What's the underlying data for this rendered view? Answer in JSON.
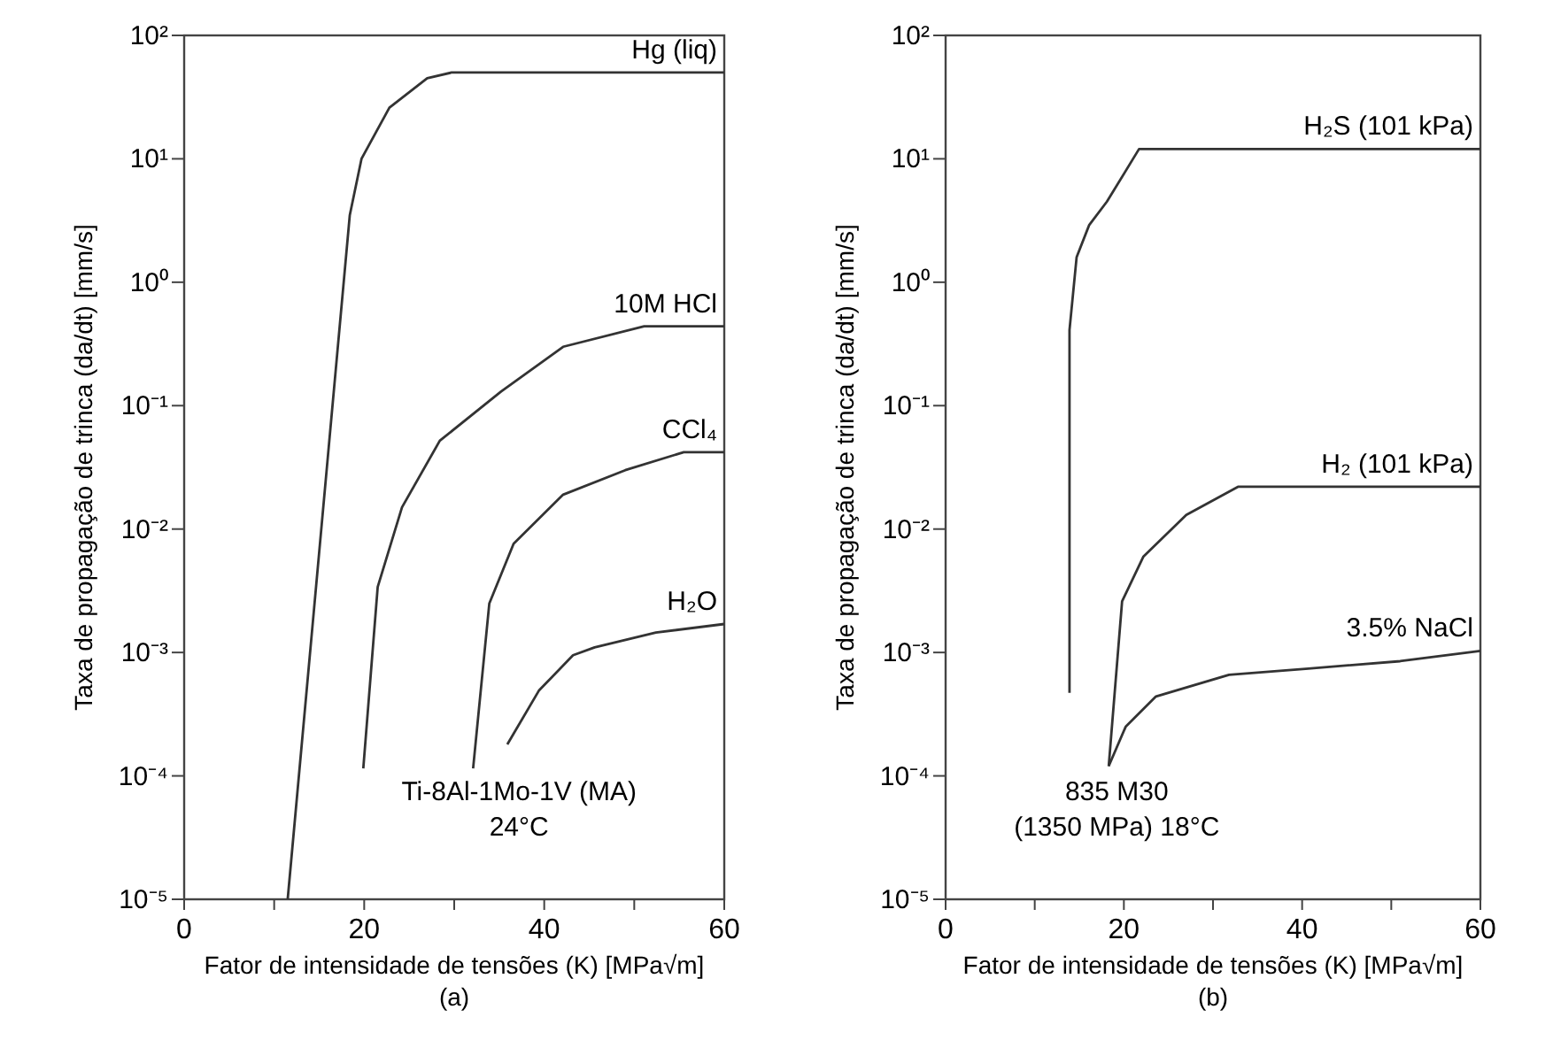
{
  "chart_data": [
    {
      "type": "line",
      "xlabel": "Fator de intensidade de tensões (K) [MPa√m]",
      "ylabel": "Taxa de propagação de trinca (da/dt) [mm/s]",
      "log": "y",
      "xlim": [
        0,
        60
      ],
      "ylim": [
        1e-05,
        100
      ],
      "xticks": [
        0,
        {
          "value": 10,
          "label": null
        },
        20,
        {
          "value": 30,
          "label": null
        },
        40,
        {
          "value": 50,
          "label": null
        },
        60
      ],
      "yticks": [
        {
          "value": 1e-05,
          "label": "10⁻⁵"
        },
        {
          "value": 0.0001,
          "label": "10⁻⁴"
        },
        {
          "value": 0.001,
          "label": "10⁻³"
        },
        {
          "value": 0.01,
          "label": "10⁻²"
        },
        {
          "value": 0.1,
          "label": "10⁻¹"
        },
        {
          "value": 1,
          "label": "10⁰"
        },
        {
          "value": 10,
          "label": "10¹"
        },
        {
          "value": 100,
          "label": "10²"
        }
      ],
      "grid": false,
      "legend": false,
      "marker": "none",
      "line_style": "solid",
      "annotations": [
        "Ti-8Al-1Mo-1V (MA)",
        "24°C",
        "(a)"
      ],
      "series": [
        {
          "name": "Hg (liq)",
          "color": "#333333",
          "x": [
            11.5,
            18.4,
            19.7,
            22.8,
            27,
            29.7,
            60
          ],
          "values": [
            1e-05,
            3.5,
            10,
            26,
            45,
            50,
            50
          ]
        },
        {
          "name": "10M HCl",
          "color": "#333333",
          "x": [
            19.9,
            21.5,
            24.2,
            28.4,
            35.2,
            42.1,
            51.1,
            60
          ],
          "values": [
            0.000115,
            0.0034,
            0.015,
            0.052,
            0.13,
            0.3,
            0.44,
            0.44
          ]
        },
        {
          "name": "CCl₄",
          "color": "#333333",
          "x": [
            32.1,
            33.9,
            36.6,
            42.1,
            49,
            55.5,
            60
          ],
          "values": [
            0.000115,
            0.0025,
            0.0076,
            0.019,
            0.03,
            0.042,
            0.042
          ]
        },
        {
          "name": "H₂O",
          "color": "#333333",
          "x": [
            35.9,
            39.4,
            43.2,
            45.6,
            52.4,
            60
          ],
          "values": [
            0.00018,
            0.00049,
            0.00095,
            0.0011,
            0.00145,
            0.0017
          ]
        }
      ]
    },
    {
      "type": "line",
      "xlabel": "Fator de intensidade de tensões (K) [MPa√m]",
      "ylabel": "Taxa de propagação de trinca (da/dt) [mm/s]",
      "log": "y",
      "xlim": [
        0,
        60
      ],
      "ylim": [
        1e-05,
        100
      ],
      "xticks": [
        0,
        {
          "value": 10,
          "label": null
        },
        20,
        {
          "value": 30,
          "label": null
        },
        40,
        {
          "value": 50,
          "label": null
        },
        60
      ],
      "yticks": [
        {
          "value": 1e-05,
          "label": "10⁻⁵"
        },
        {
          "value": 0.0001,
          "label": "10⁻⁴"
        },
        {
          "value": 0.001,
          "label": "10⁻³"
        },
        {
          "value": 0.01,
          "label": "10⁻²"
        },
        {
          "value": 0.1,
          "label": "10⁻¹"
        },
        {
          "value": 1,
          "label": "10⁰"
        },
        {
          "value": 10,
          "label": "10¹"
        },
        {
          "value": 100,
          "label": "10²"
        }
      ],
      "grid": false,
      "legend": false,
      "marker": "none",
      "line_style": "solid",
      "annotations": [
        "835 M30",
        "(1350 MPa) 18°C",
        "(b)"
      ],
      "series": [
        {
          "name": "H₂S (101 kPa)",
          "color": "#333333",
          "x": [
            13.9,
            13.9,
            14.7,
            16.1,
            18.1,
            21.7,
            60
          ],
          "values": [
            0.00047,
            0.41,
            1.6,
            2.9,
            4.5,
            12,
            12
          ]
        },
        {
          "name": "H₂ (101 kPa)",
          "color": "#333333",
          "x": [
            18.3,
            19.8,
            22.2,
            27,
            32.8,
            60
          ],
          "values": [
            0.00012,
            0.0026,
            0.006,
            0.013,
            0.022,
            0.022
          ]
        },
        {
          "name": "3.5% NaCl",
          "color": "#333333",
          "x": [
            18.3,
            20.2,
            23.6,
            31.8,
            40.7,
            51,
            60
          ],
          "values": [
            0.00012,
            0.00025,
            0.00044,
            0.00066,
            0.00074,
            0.00085,
            0.00103
          ]
        }
      ]
    }
  ]
}
